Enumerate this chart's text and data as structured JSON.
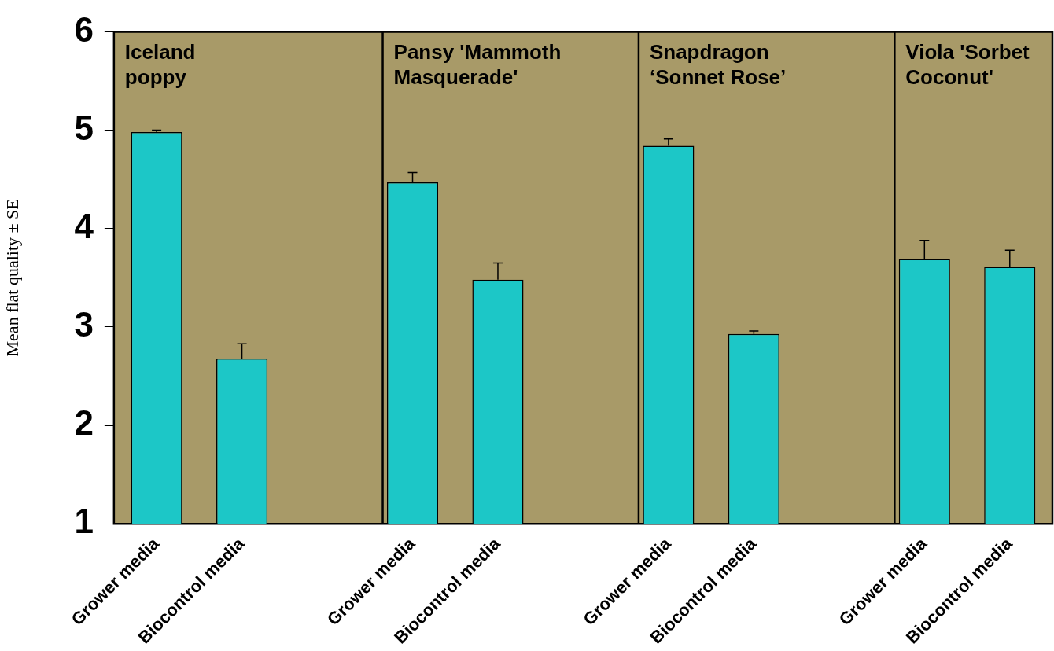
{
  "chart_data": {
    "type": "bar",
    "ylabel": "Mean flat quality ± SE",
    "categories": [
      "Grower media",
      "Biocontrol media",
      null,
      "Grower media",
      "Biocontrol media",
      null,
      "Grower media",
      "Biocontrol media",
      null,
      "Grower media",
      "Biocontrol media"
    ],
    "values": [
      4.98,
      2.68,
      null,
      4.47,
      3.48,
      null,
      4.84,
      2.93,
      null,
      3.69,
      3.61
    ],
    "errors": [
      0.02,
      0.15,
      null,
      0.1,
      0.17,
      null,
      0.07,
      0.03,
      null,
      0.19,
      0.17
    ],
    "color": "#1cc7c7",
    "ylim": [
      1,
      6
    ],
    "yticks": [
      1,
      2,
      3,
      4,
      5,
      6
    ],
    "grid": false,
    "legend": false,
    "annotations": [
      "Iceland\npoppy",
      "Pansy 'Mammoth\nMasquerade'",
      "Snapdragon\n‘Sonnet Rose’",
      "Viola 'Sorbet\nCoconut'"
    ]
  }
}
